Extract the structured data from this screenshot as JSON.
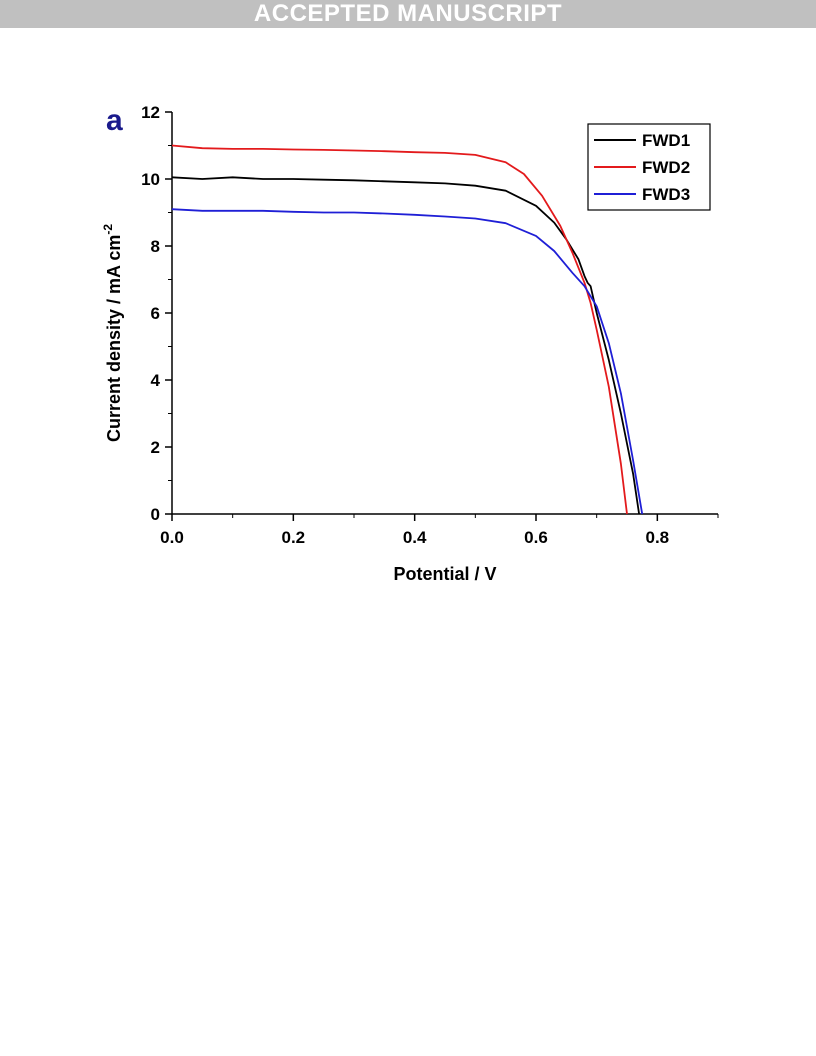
{
  "banner": {
    "text": "ACCEPTED MANUSCRIPT"
  },
  "panel_label": "a",
  "chart_data": {
    "type": "line",
    "xlabel": "Potential / V",
    "ylabel": "Current density / mA cm",
    "ylabel_superscript": "-2",
    "xlim": [
      0,
      0.9
    ],
    "ylim": [
      0,
      12
    ],
    "xticks": [
      0.0,
      0.2,
      0.4,
      0.6,
      0.8
    ],
    "xtick_labels": [
      "0.0",
      "0.2",
      "0.4",
      "0.6",
      "0.8"
    ],
    "yticks": [
      0,
      2,
      4,
      6,
      8,
      10,
      12
    ],
    "ytick_labels": [
      "0",
      "2",
      "4",
      "6",
      "8",
      "10",
      "12"
    ],
    "grid": false,
    "legend_position": "top-right",
    "series": [
      {
        "name": "FWD1",
        "color": "#000000",
        "x": [
          0.0,
          0.05,
          0.1,
          0.15,
          0.2,
          0.25,
          0.3,
          0.35,
          0.4,
          0.45,
          0.5,
          0.55,
          0.6,
          0.63,
          0.65,
          0.67,
          0.68,
          0.685,
          0.69,
          0.7,
          0.72,
          0.74,
          0.76,
          0.77
        ],
        "y": [
          10.05,
          10.0,
          10.05,
          10.0,
          10.0,
          9.98,
          9.96,
          9.93,
          9.9,
          9.87,
          9.8,
          9.65,
          9.2,
          8.7,
          8.2,
          7.6,
          7.1,
          6.9,
          6.8,
          6.0,
          4.6,
          3.0,
          1.2,
          0.0
        ]
      },
      {
        "name": "FWD2",
        "color": "#e31a1c",
        "x": [
          0.0,
          0.05,
          0.1,
          0.15,
          0.2,
          0.25,
          0.3,
          0.35,
          0.4,
          0.45,
          0.5,
          0.55,
          0.58,
          0.61,
          0.64,
          0.66,
          0.68,
          0.69,
          0.7,
          0.72,
          0.74,
          0.75
        ],
        "y": [
          11.0,
          10.92,
          10.9,
          10.9,
          10.88,
          10.87,
          10.85,
          10.83,
          10.8,
          10.78,
          10.72,
          10.5,
          10.15,
          9.5,
          8.6,
          7.8,
          6.9,
          6.3,
          5.5,
          3.8,
          1.5,
          0.0
        ]
      },
      {
        "name": "FWD3",
        "color": "#1f1fd6",
        "x": [
          0.0,
          0.05,
          0.1,
          0.15,
          0.2,
          0.25,
          0.3,
          0.35,
          0.4,
          0.45,
          0.5,
          0.55,
          0.6,
          0.63,
          0.66,
          0.68,
          0.69,
          0.7,
          0.72,
          0.74,
          0.76,
          0.775
        ],
        "y": [
          9.1,
          9.05,
          9.05,
          9.05,
          9.02,
          9.0,
          9.0,
          8.97,
          8.93,
          8.88,
          8.82,
          8.68,
          8.3,
          7.85,
          7.2,
          6.8,
          6.5,
          6.2,
          5.1,
          3.6,
          1.6,
          0.0
        ]
      }
    ]
  }
}
